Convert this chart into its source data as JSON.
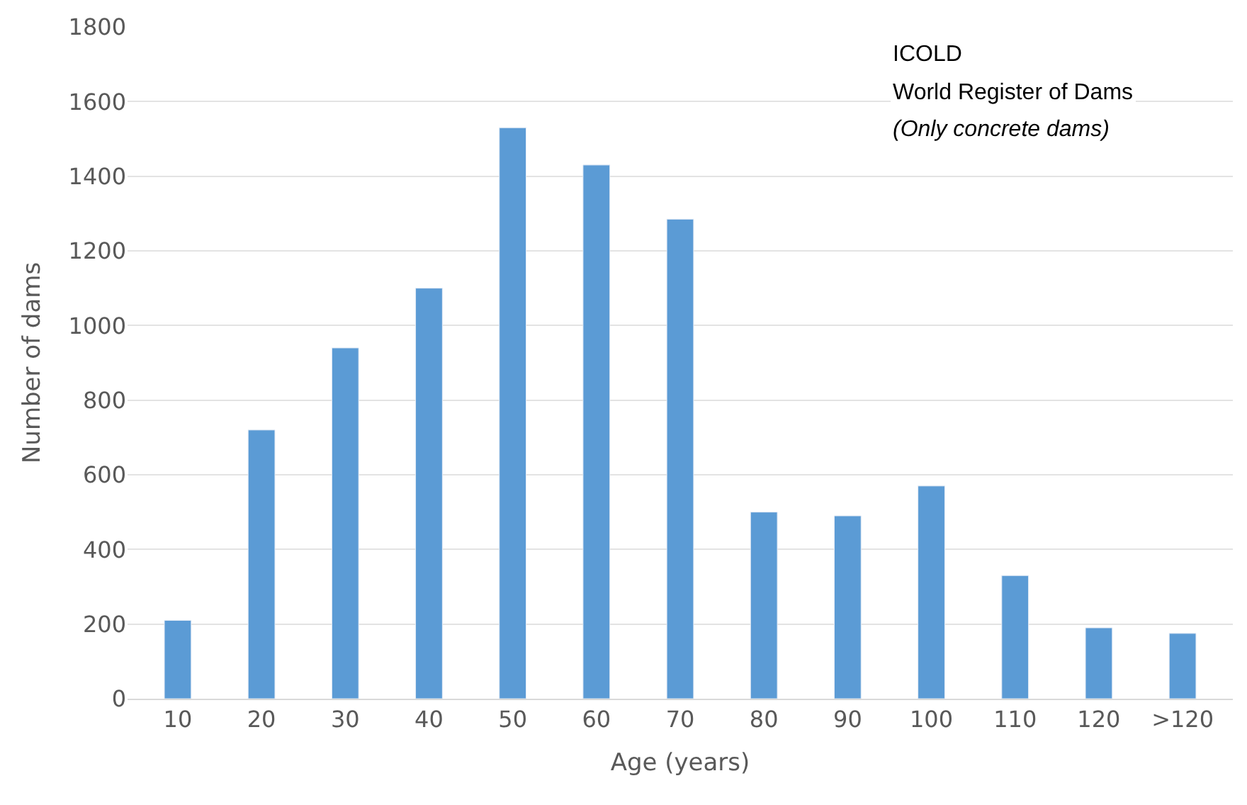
{
  "chart_data": {
    "type": "bar",
    "xlabel": "Age (years)",
    "ylabel": "Number of dams",
    "categories": [
      "10",
      "20",
      "30",
      "40",
      "50",
      "60",
      "70",
      "80",
      "90",
      "100",
      "110",
      "120",
      ">120"
    ],
    "values": [
      210,
      720,
      940,
      1100,
      1530,
      1430,
      1285,
      500,
      490,
      570,
      330,
      190,
      175
    ],
    "color": "#5b9bd5",
    "ylim": [
      0,
      1800
    ],
    "yticks": [
      0,
      200,
      400,
      600,
      800,
      1000,
      1200,
      1400,
      1600,
      1800
    ],
    "grid": "y",
    "annotations": [
      "ICOLD",
      "World Register of Dams",
      "(Only concrete dams)"
    ]
  }
}
